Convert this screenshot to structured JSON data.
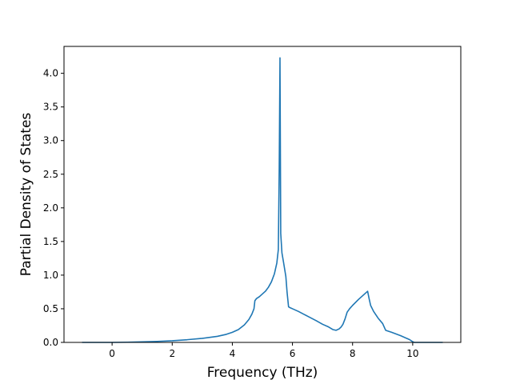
{
  "chart_data": {
    "type": "line",
    "title": "",
    "xlabel": "Frequency (THz)",
    "ylabel": "Partial Density of States",
    "xlim": [
      -1.6,
      11.6
    ],
    "ylim": [
      0.0,
      4.4
    ],
    "xticks": [
      0,
      2,
      4,
      6,
      8,
      10
    ],
    "yticks": [
      0.0,
      0.5,
      1.0,
      1.5,
      2.0,
      2.5,
      3.0,
      3.5,
      4.0
    ],
    "grid": false,
    "legend": "none",
    "color": "#1f77b4",
    "series": [
      {
        "x": [
          -1.0,
          0.0,
          0.5,
          1.0,
          1.5,
          2.0,
          2.5,
          3.0,
          3.5,
          3.8,
          4.0,
          4.2,
          4.4,
          4.55,
          4.65,
          4.72,
          4.75,
          4.8,
          4.9,
          5.0,
          5.1,
          5.2,
          5.3,
          5.4,
          5.48,
          5.53,
          5.56,
          5.585,
          5.61,
          5.65,
          5.7,
          5.78,
          5.82,
          5.87,
          5.9,
          6.0,
          6.2,
          6.5,
          6.8,
          7.0,
          7.2,
          7.35,
          7.45,
          7.55,
          7.62,
          7.68,
          7.75,
          7.82,
          7.9,
          8.0,
          8.2,
          8.4,
          8.5,
          8.55,
          8.6,
          8.7,
          8.85,
          9.0,
          9.1,
          9.3,
          9.6,
          9.9,
          10.0,
          10.05,
          11.0
        ],
        "y": [
          0.0,
          0.0,
          0.003,
          0.008,
          0.015,
          0.025,
          0.04,
          0.06,
          0.09,
          0.12,
          0.15,
          0.19,
          0.26,
          0.34,
          0.42,
          0.5,
          0.62,
          0.65,
          0.68,
          0.72,
          0.76,
          0.82,
          0.9,
          1.02,
          1.18,
          1.38,
          2.6,
          4.23,
          1.62,
          1.33,
          1.2,
          0.98,
          0.75,
          0.53,
          0.52,
          0.5,
          0.46,
          0.39,
          0.32,
          0.27,
          0.23,
          0.19,
          0.18,
          0.2,
          0.23,
          0.27,
          0.35,
          0.45,
          0.5,
          0.55,
          0.64,
          0.72,
          0.76,
          0.65,
          0.55,
          0.46,
          0.36,
          0.28,
          0.18,
          0.15,
          0.1,
          0.04,
          0.01,
          0.0,
          0.0
        ]
      }
    ]
  }
}
